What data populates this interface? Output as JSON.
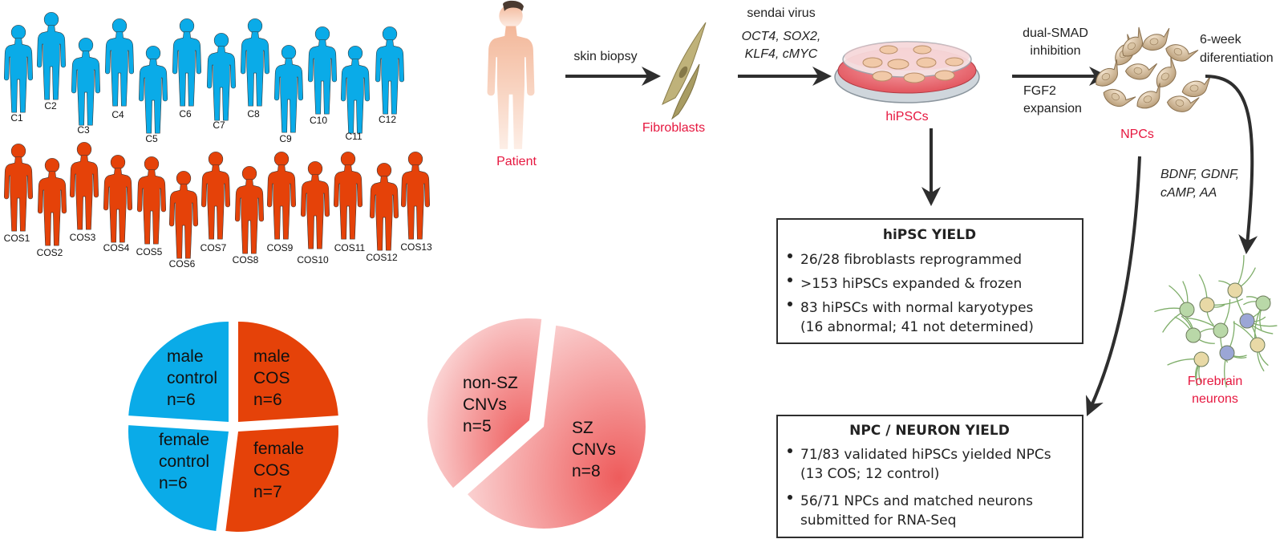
{
  "colors": {
    "control": "#0aabe8",
    "cos": "#e54209",
    "red_label": "#e6173f",
    "arrow": "#2e2e2e",
    "text": "#222222",
    "cnv_light": "#fbd7d7",
    "cnv_dark": "#ee5c5c"
  },
  "controls": [
    "C1",
    "C2",
    "C3",
    "C4",
    "C5",
    "C6",
    "C7",
    "C8",
    "C9",
    "C10",
    "C11",
    "C12"
  ],
  "cos": [
    "COS1",
    "COS2",
    "COS3",
    "COS4",
    "COS5",
    "COS6",
    "COS7",
    "COS8",
    "COS9",
    "COS10",
    "COS11",
    "COS12",
    "COS13"
  ],
  "pipeline": {
    "patient": "Patient",
    "skin_biopsy": "skin biopsy",
    "fibroblasts": "Fibroblasts",
    "sendai": "sendai virus",
    "factors_line1": "OCT4, SOX2,",
    "factors_line2": "KLF4, cMYC",
    "hipscs": "hiPSCs",
    "dual_smad_1": "dual-SMAD",
    "dual_smad_2": "inhibition",
    "fgf2_1": "FGF2",
    "fgf2_2": "expansion",
    "npcs": "NPCs",
    "diff_1": "6-week",
    "diff_2": "diferentiation",
    "factors2_line1": "BDNF, GDNF,",
    "factors2_line2": "cAMP, AA",
    "forebrain_1": "Forebrain",
    "forebrain_2": "neurons"
  },
  "hipsc_yield": {
    "title": "hiPSC YIELD",
    "items": [
      "26/28 fibroblasts reprogrammed",
      ">153 hiPSCs expanded & frozen",
      "83 hiPSCs with normal karyotypes",
      "(16 abnormal; 41 not determined)"
    ]
  },
  "npc_yield": {
    "title": "NPC / NEURON YIELD",
    "items": [
      "71/83 validated hiPSCs yielded NPCs",
      "(13 COS; 12 control)",
      "56/71 NPCs and matched neurons",
      "submitted for RNA-Seq"
    ]
  },
  "chart_data": [
    {
      "type": "pie",
      "slices": [
        {
          "label": "male control",
          "value": 6
        },
        {
          "label": "male COS",
          "value": 6
        },
        {
          "label": "female COS",
          "value": 7
        },
        {
          "label": "female control",
          "value": 6
        }
      ],
      "text": {
        "male_control": [
          "male",
          "control",
          "n=6"
        ],
        "male_cos": [
          "male",
          "COS",
          "n=6"
        ],
        "female_control": [
          "female",
          "control",
          "n=6"
        ],
        "female_cos": [
          "female",
          "COS",
          "n=7"
        ]
      }
    },
    {
      "type": "pie",
      "slices": [
        {
          "label": "SZ CNVs",
          "value": 8
        },
        {
          "label": "non-SZ CNVs",
          "value": 5
        }
      ],
      "text": {
        "sz": [
          "SZ",
          "CNVs",
          "n=8"
        ],
        "non_sz": [
          "non-SZ",
          "CNVs",
          "n=5"
        ]
      }
    }
  ]
}
